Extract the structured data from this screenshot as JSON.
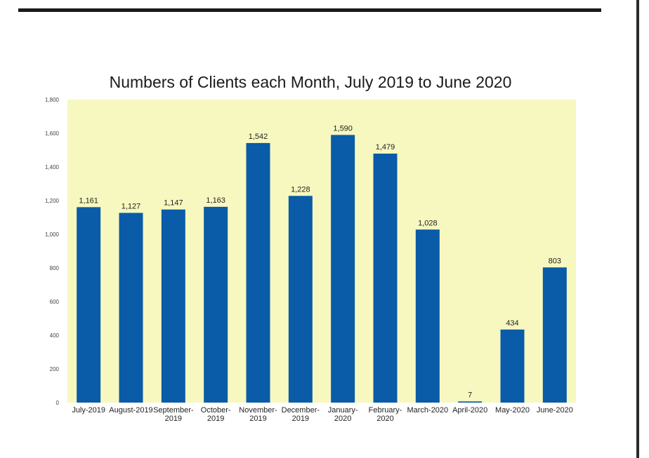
{
  "chart_data": {
    "type": "bar",
    "title": "Numbers of Clients each Month, July 2019 to June 2020",
    "xlabel": "",
    "ylabel": "",
    "ylim": [
      0,
      1800
    ],
    "yticks": [
      "0",
      "200",
      "400",
      "600",
      "800",
      "1,000",
      "1,200",
      "1,400",
      "1,600",
      "1,800"
    ],
    "categories": [
      [
        "July-2019"
      ],
      [
        "August-2019"
      ],
      [
        "September-",
        "2019"
      ],
      [
        "October-",
        "2019"
      ],
      [
        "November-",
        "2019"
      ],
      [
        "December-",
        "2019"
      ],
      [
        "January-",
        "2020"
      ],
      [
        "February-",
        "2020"
      ],
      [
        "March-2020"
      ],
      [
        "April-2020"
      ],
      [
        "May-2020"
      ],
      [
        "June-2020"
      ]
    ],
    "values": [
      1161,
      1127,
      1147,
      1163,
      1542,
      1228,
      1590,
      1479,
      1028,
      7,
      434,
      803
    ],
    "value_labels": [
      "1,161",
      "1,127",
      "1,147",
      "1,163",
      "1,542",
      "1,228",
      "1,590",
      "1,479",
      "1,028",
      "7",
      "434",
      "803"
    ],
    "bar_color": "#0a5ba8",
    "plot_background": "#f7f8bf",
    "grid": false,
    "legend": "none"
  }
}
